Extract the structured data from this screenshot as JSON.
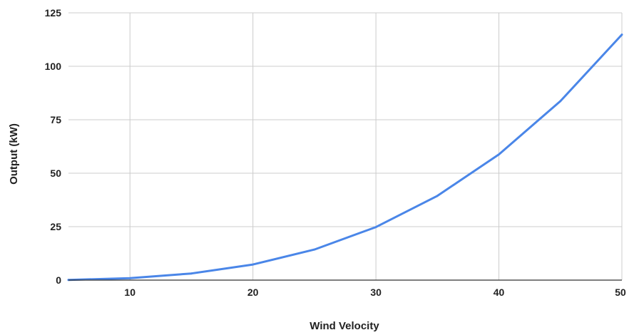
{
  "chart_data": {
    "type": "line",
    "title": "",
    "xlabel": "Wind Velocity",
    "ylabel": "Output (kW)",
    "xlim": [
      5,
      50
    ],
    "ylim": [
      0,
      125
    ],
    "x_ticks": [
      10,
      20,
      30,
      40,
      50
    ],
    "y_ticks": [
      0,
      25,
      50,
      75,
      100,
      125
    ],
    "x_tick_labels": [
      "10",
      "20",
      "30",
      "40",
      "50"
    ],
    "y_tick_labels": [
      "0",
      "25",
      "50",
      "75",
      "100",
      "125"
    ],
    "grid": true,
    "legend": "none",
    "series": [
      {
        "color": "#4a86e8",
        "x": [
          5,
          10,
          15,
          20,
          25,
          30,
          35,
          40,
          45,
          50
        ],
        "y": [
          0.1,
          0.9,
          3.1,
          7.3,
          14.3,
          24.8,
          39.4,
          58.8,
          83.7,
          114.8
        ]
      }
    ]
  },
  "colors": {
    "grid": "#cccccc",
    "axis": "#333333",
    "line": "#4a86e8"
  }
}
